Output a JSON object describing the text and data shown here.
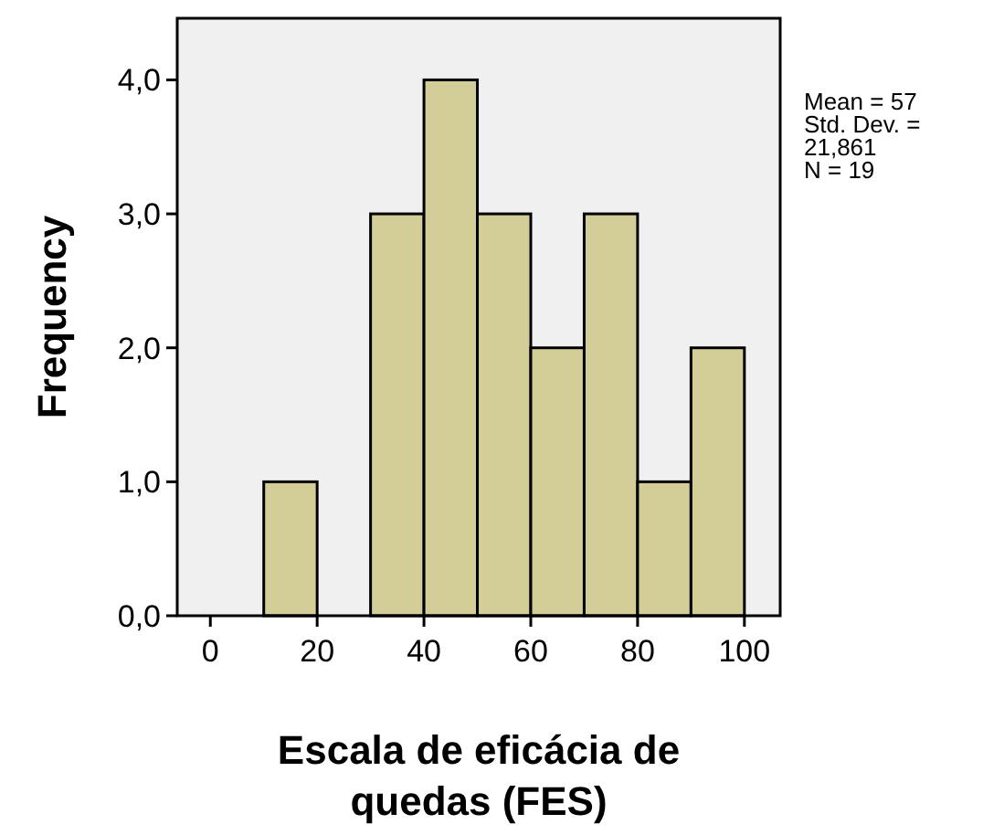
{
  "chart_data": {
    "type": "histogram",
    "xlabel": "Escala de eficácia de quedas (FES)",
    "ylabel": "Frequency",
    "bins": [
      10,
      20,
      30,
      40,
      50,
      60,
      70,
      80,
      90,
      100
    ],
    "values": [
      1,
      0,
      3,
      4,
      3,
      2,
      3,
      1,
      2
    ],
    "color": "#d3ce97",
    "xlim": [
      -6.2,
      106.7
    ],
    "xticks": [
      0,
      20,
      40,
      60,
      80,
      100
    ],
    "ylim": [
      0,
      4.46
    ],
    "yticks": [
      {
        "value": 0,
        "label": "0,0"
      },
      {
        "value": 1,
        "label": "1,0"
      },
      {
        "value": 2,
        "label": "2,0"
      },
      {
        "value": 3,
        "label": "3,0"
      },
      {
        "value": 4,
        "label": "4,0"
      }
    ],
    "annotations": [
      "Mean = 57",
      "Std. Dev. = 21,861",
      "N = 19"
    ],
    "grid": false
  }
}
